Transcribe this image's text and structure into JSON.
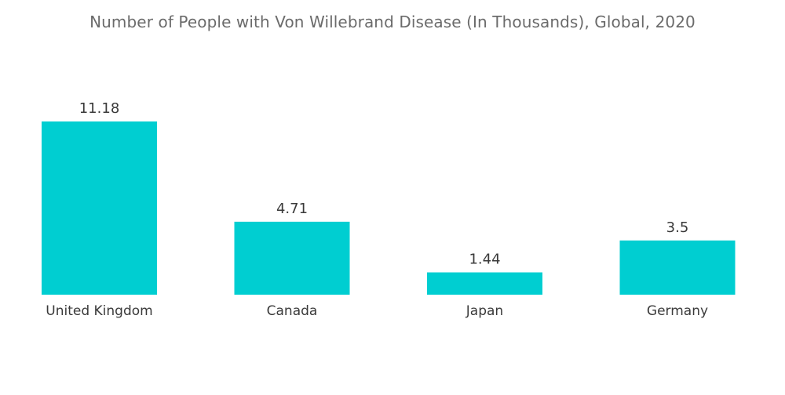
{
  "chart_data": {
    "type": "bar",
    "title": "Number of People with Von Willebrand Disease (In Thousands), Global, 2020",
    "categories": [
      "United Kingdom",
      "Canada",
      "Japan",
      "Germany"
    ],
    "values": [
      11.18,
      4.71,
      1.44,
      3.5
    ],
    "value_labels": [
      "11.18",
      "4.71",
      "1.44",
      "3.5"
    ],
    "xlabel": "",
    "ylabel": "",
    "ylim": [
      0,
      11.18
    ],
    "grid": false,
    "legend": "none",
    "bar_color": "#00ced1"
  }
}
